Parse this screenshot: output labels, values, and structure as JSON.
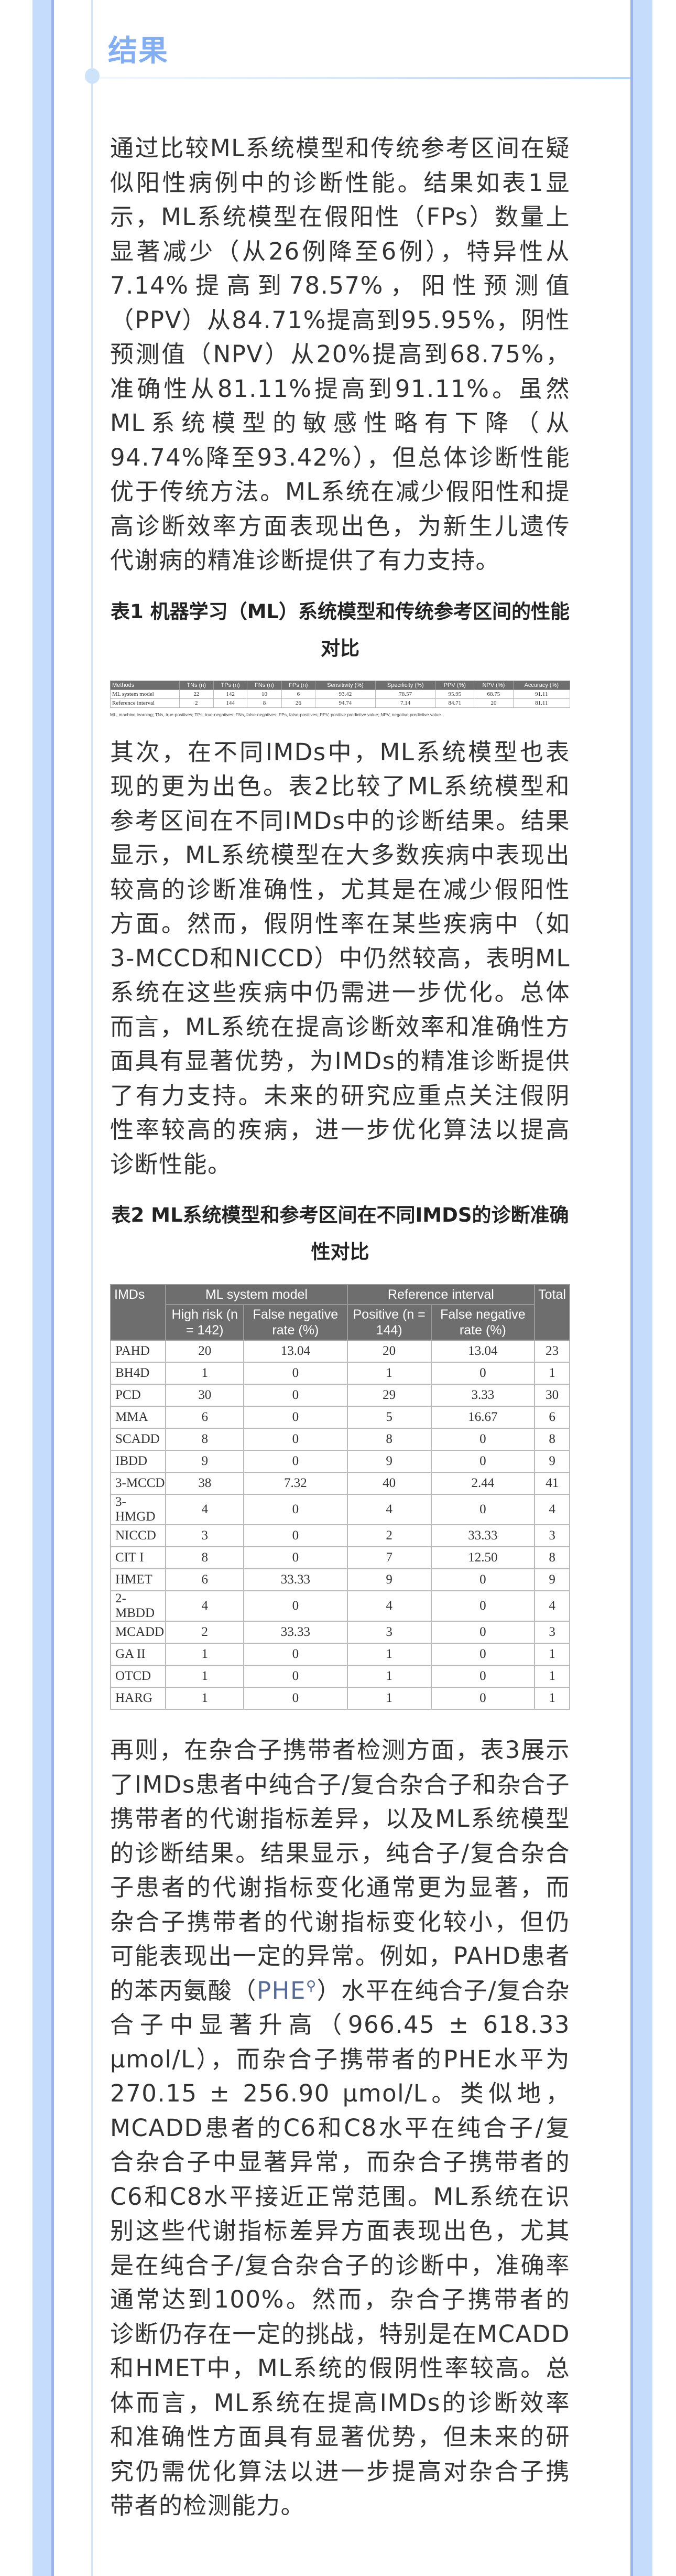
{
  "section_title": "结果",
  "para1": "通过比较ML系统模型和传统参考区间在疑似阳性病例中的诊断性能。结果如表1显示，ML系统模型在假阳性（FPs）数量上显著减少（从26例降至6例），特异性从7.14%提高到78.57%，阳性预测值（PPV）从84.71%提高到95.95%，阴性预测值（NPV）从20%提高到68.75%，准确性从81.11%提高到91.11%。虽然ML系统模型的敏感性略有下降（从94.74%降至93.42%），但总体诊断性能优于传统方法。ML系统在减少假阳性和提高诊断效率方面表现出色，为新生儿遗传代谢病的精准诊断提供了有力支持。",
  "table1": {
    "caption": "表1 机器学习（ML）系统模型和传统参考区间的性能对比",
    "headers": [
      "Methods",
      "TNs (n)",
      "TPs (n)",
      "FNs (n)",
      "FPs (n)",
      "Sensitivity (%)",
      "Specificity (%)",
      "PPV (%)",
      "NPV (%)",
      "Accuracy (%)"
    ],
    "rows": [
      [
        "ML system model",
        "22",
        "142",
        "10",
        "6",
        "93.42",
        "78.57",
        "95.95",
        "68.75",
        "91.11"
      ],
      [
        "Reference interval",
        "2",
        "144",
        "8",
        "26",
        "94.74",
        "7.14",
        "84.71",
        "20",
        "81.11"
      ]
    ],
    "note": "ML, machine learning; TNs, true-positives; TPs, true-negatives; FNs, false-negatives; FPs, false-positives; PPV, positive predictive value; NPV, negative predictive value."
  },
  "para2": "其次，在不同IMDs中，ML系统模型也表现的更为出色。表2比较了ML系统模型和参考区间在不同IMDs中的诊断结果。结果显示，ML系统模型在大多数疾病中表现出较高的诊断准确性，尤其是在减少假阳性方面。然而，假阴性率在某些疾病中（如3-MCCD和NICCD）中仍然较高，表明ML系统在这些疾病中仍需进一步优化。总体而言，ML系统在提高诊断效率和准确性方面具有显著优势，为IMDs的精准诊断提供了有力支持。未来的研究应重点关注假阴性率较高的疾病，进一步优化算法以提高诊断性能。",
  "table2": {
    "caption": "表2 ML系统模型和参考区间在不同IMDS的诊断准确性对比",
    "col_imds": "IMDs",
    "group_ml": "ML system model",
    "group_ref": "Reference interval",
    "col_total": "Total",
    "sub_headers": [
      "High risk (n = 142)",
      "False negative rate (%)",
      "Positive (n = 144)",
      "False negative rate (%)"
    ],
    "rows": [
      [
        "PAHD",
        "20",
        "13.04",
        "20",
        "13.04",
        "23"
      ],
      [
        "BH4D",
        "1",
        "0",
        "1",
        "0",
        "1"
      ],
      [
        "PCD",
        "30",
        "0",
        "29",
        "3.33",
        "30"
      ],
      [
        "MMA",
        "6",
        "0",
        "5",
        "16.67",
        "6"
      ],
      [
        "SCADD",
        "8",
        "0",
        "8",
        "0",
        "8"
      ],
      [
        "IBDD",
        "9",
        "0",
        "9",
        "0",
        "9"
      ],
      [
        "3-MCCD",
        "38",
        "7.32",
        "40",
        "2.44",
        "41"
      ],
      [
        "3-HMGD",
        "4",
        "0",
        "4",
        "0",
        "4"
      ],
      [
        "NICCD",
        "3",
        "0",
        "2",
        "33.33",
        "3"
      ],
      [
        "CIT I",
        "8",
        "0",
        "7",
        "12.50",
        "8"
      ],
      [
        "HMET",
        "6",
        "33.33",
        "9",
        "0",
        "9"
      ],
      [
        "2-MBDD",
        "4",
        "0",
        "4",
        "0",
        "4"
      ],
      [
        "MCADD",
        "2",
        "33.33",
        "3",
        "0",
        "3"
      ],
      [
        "GA II",
        "1",
        "0",
        "1",
        "0",
        "1"
      ],
      [
        "OTCD",
        "1",
        "0",
        "1",
        "0",
        "1"
      ],
      [
        "HARG",
        "1",
        "0",
        "1",
        "0",
        "1"
      ]
    ]
  },
  "para3": {
    "before_link": "再则，在杂合子携带者检测方面，表3展示了IMDs患者中纯合子/复合杂合子和杂合子携带者的代谢指标差异，以及ML系统模型的诊断结果。结果显示，纯合子/复合杂合子患者的代谢指标变化通常更为显著，而杂合子携带者的代谢指标变化较小，但仍可能表现出一定的异常。例如，PAHD患者的苯丙氨酸（",
    "link": "PHE",
    "after_link": "）水平在纯合子/复合杂合子中显著升高（966.45 ± 618.33 μmol/L），而杂合子携带者的PHE水平为270.15 ± 256.90 μmol/L。类似地，MCADD患者的C6和C8水平在纯合子/复合杂合子中显著异常，而杂合子携带者的C6和C8水平接近正常范围。ML系统在识别这些代谢指标差异方面表现出色，尤其是在纯合子/复合杂合子的诊断中，准确率通常达到100%。然而，杂合子携带者的诊断仍存在一定的挑战，特别是在MCADD和HMET中，ML系统的假阴性率较高。总体而言，ML系统在提高IMDs的诊断效率和准确性方面具有显著优势，但未来的研究仍需优化算法以进一步提高对杂合子携带者的检测能力。"
  },
  "colors": {
    "title": "#84aef2",
    "frame": "#c5dcfc",
    "link": "#576b95",
    "table_header": "#6e6e6e"
  }
}
